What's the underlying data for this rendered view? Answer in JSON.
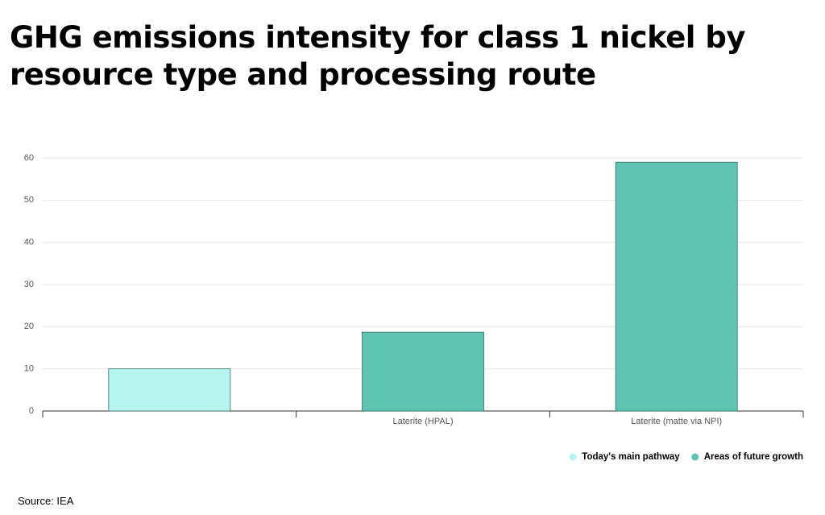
{
  "chart_data": {
    "type": "bar",
    "title": "GHG emissions intensity for class 1 nickel by resource type and processing route",
    "categories": [
      null,
      "Laterite (HPAL)",
      "Laterite (matte via NPI)"
    ],
    "series": [
      {
        "name": "Today's main pathway",
        "color": "#b6f5ef",
        "values": [
          10,
          null,
          null
        ]
      },
      {
        "name": "Areas of future growth",
        "color": "#5fc4b2",
        "values": [
          null,
          18.7,
          59
        ]
      }
    ],
    "ylim": [
      0,
      60
    ],
    "yticks": [
      0,
      10,
      20,
      30,
      40,
      50,
      60
    ],
    "grid": true,
    "legend": "bottom-right",
    "source": "Source: IEA"
  }
}
